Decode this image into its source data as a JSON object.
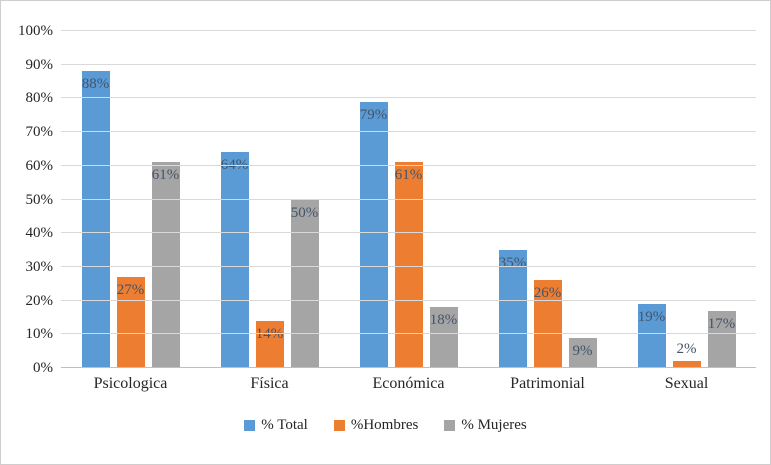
{
  "chart_data": {
    "type": "bar",
    "title": "",
    "categories": [
      "Psicologica",
      "Física",
      "Económica",
      "Patrimonial",
      "Sexual"
    ],
    "series": [
      {
        "name": "% Total",
        "color": "#5b9bd5",
        "values": [
          88,
          64,
          79,
          35,
          19
        ]
      },
      {
        "name": "%Hombres",
        "color": "#ed7d31",
        "values": [
          27,
          14,
          61,
          26,
          2
        ]
      },
      {
        "name": "% Mujeres",
        "color": "#a5a5a5",
        "values": [
          61,
          50,
          18,
          9,
          17
        ]
      }
    ],
    "ylim": [
      0,
      100
    ],
    "y_tick_step": 10,
    "y_tick_labels": [
      "0%",
      "10%",
      "20%",
      "30%",
      "40%",
      "50%",
      "60%",
      "70%",
      "80%",
      "90%",
      "100%"
    ],
    "grid": true,
    "legend_position": "bottom",
    "data_label_suffix": "%",
    "data_label_color": "#44546a",
    "gridline_color": "#d9d9d9",
    "axis_line_color": "#bfbfbf"
  }
}
